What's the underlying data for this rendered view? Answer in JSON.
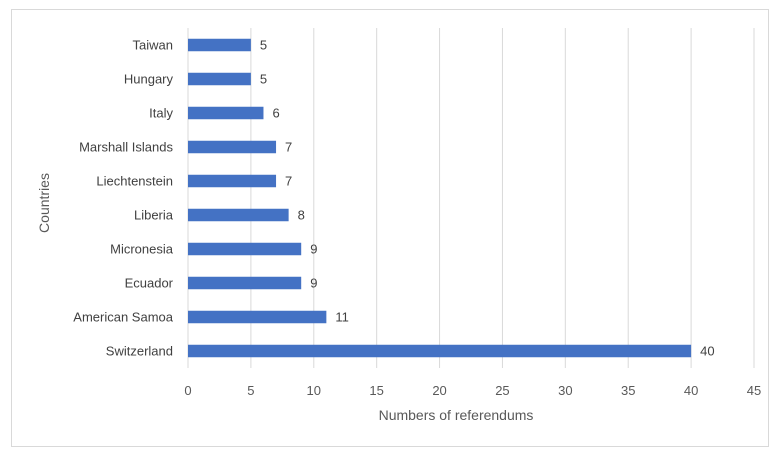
{
  "chart_data": {
    "type": "bar",
    "orientation": "horizontal",
    "categories": [
      "Switzerland",
      "American Samoa",
      "Ecuador",
      "Micronesia",
      "Liberia",
      "Liechtenstein",
      "Marshall Islands",
      "Italy",
      "Hungary",
      "Taiwan"
    ],
    "values": [
      40,
      11,
      9,
      9,
      8,
      7,
      7,
      6,
      5,
      5
    ],
    "title": "",
    "xlabel": "Numbers of referendums",
    "ylabel": "Countries",
    "xlim": [
      0,
      45
    ],
    "xticks": [
      0,
      5,
      10,
      15,
      20,
      25,
      30,
      35,
      40,
      45
    ],
    "grid": "vertical",
    "legend": "none",
    "data_labels": true,
    "bar_color": "#4472c4",
    "grid_color": "#d9d9d9"
  }
}
